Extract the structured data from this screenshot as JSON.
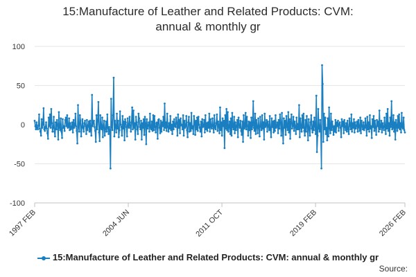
{
  "title_line1": "15:Manufacture of Leather and Related Products: CVM:",
  "title_line2": "annual & monthly gr",
  "legend_label": "15:Manufacture of Leather and Related Products: CVM: annual & monthly gr",
  "source_label": "Source:",
  "colors": {
    "series": "#1a7fc1",
    "grid": "#e6e6e6",
    "axis": "#c0c0c0"
  },
  "chart_data": {
    "type": "line",
    "title": "15:Manufacture of Leather and Related Products: CVM: annual & monthly gr",
    "xlabel": "",
    "ylabel": "",
    "ylim": [
      -100,
      100
    ],
    "yticks": [
      100,
      50,
      0,
      -50,
      -100
    ],
    "xlim": [
      "1997 FEB",
      "2026 FEB"
    ],
    "xticks": [
      "1997 FEB",
      "2004 JUN",
      "2011 OCT",
      "2019 FEB",
      "2026 FEB"
    ],
    "grid": true,
    "legend_position": "bottom",
    "series": [
      {
        "name": "15:Manufacture of Leather and Related Products: CVM: annual & monthly gr",
        "x_start": "1997 FEB",
        "frequency": "monthly",
        "key_points": [
          {
            "x": "1997 FEB",
            "y": 5
          },
          {
            "x": "2003 MAR",
            "y": 38
          },
          {
            "x": "2003 AUG",
            "y": 29
          },
          {
            "x": "2003 DEC",
            "y": -56
          },
          {
            "x": "2004 FEB",
            "y": 33
          },
          {
            "x": "2004 APR",
            "y": 60
          },
          {
            "x": "2011 DEC",
            "y": 22
          },
          {
            "x": "2012 JUL",
            "y": -30
          },
          {
            "x": "2016 MAR",
            "y": 30
          },
          {
            "x": "2019 NOV",
            "y": 37
          },
          {
            "x": "2020 APR",
            "y": -56
          },
          {
            "x": "2020 MAY",
            "y": 76
          },
          {
            "x": "2020 JUN",
            "y": 52
          },
          {
            "x": "2021 FEB",
            "y": 22
          },
          {
            "x": "2026 FEB",
            "y": -10
          }
        ],
        "values": [
          5,
          -2,
          -6,
          3,
          -4,
          -6,
          -1,
          13,
          -5,
          -9,
          -14,
          7,
          -4,
          0,
          21,
          -6,
          -8,
          -3,
          3,
          -5,
          -11,
          -18,
          9,
          -2,
          13,
          -4,
          20,
          2,
          -9,
          -4,
          10,
          -9,
          -15,
          3,
          -6,
          6,
          0,
          -19,
          16,
          -4,
          -7,
          8,
          -9,
          -17,
          7,
          -4,
          -2,
          -8,
          6,
          9,
          -2,
          12,
          -4,
          -3,
          8,
          -7,
          2,
          -6,
          -4,
          3,
          -10,
          6,
          -4,
          -1,
          14,
          -2,
          -8,
          -24,
          25,
          -3,
          -9,
          12,
          5,
          -15,
          -3,
          7,
          -4,
          -9,
          2,
          5,
          -2,
          -12,
          6,
          -7,
          -2,
          4,
          -9,
          5,
          -7,
          -14,
          38,
          -2,
          2,
          5,
          -3,
          -8,
          -22,
          12,
          -6,
          5,
          29,
          -10,
          -21,
          12,
          -4,
          -6,
          9,
          -16,
          -2,
          5,
          -14,
          -6,
          4,
          -9,
          13,
          -4,
          -12,
          -3,
          -7,
          -56,
          33,
          -3,
          -7,
          12,
          60,
          -15,
          5,
          -3,
          -10,
          14,
          -5,
          5,
          -16,
          -7,
          17,
          0,
          -3,
          -14,
          11,
          -5,
          4,
          -20,
          7,
          3,
          -3,
          -15,
          8,
          -2,
          -4,
          10,
          -1,
          -9,
          3,
          22,
          -6,
          18,
          -4,
          2,
          -19,
          10,
          3,
          -6,
          -12,
          14,
          8,
          -3,
          -6,
          5,
          -19,
          2,
          -4,
          7,
          -13,
          10,
          2,
          -25,
          7,
          -5,
          -1,
          3,
          -9,
          14,
          -4,
          -6,
          4,
          -8,
          12,
          -7,
          11,
          -3,
          -10,
          2,
          3,
          -18,
          6,
          7,
          -4,
          -11,
          5,
          -9,
          3,
          -2,
          10,
          -7,
          27,
          -4,
          3,
          -8,
          14,
          -3,
          -9,
          2,
          -5,
          11,
          -7,
          0,
          -12,
          4,
          -6,
          7,
          -2,
          -3,
          9,
          2,
          -14,
          13,
          -4,
          6,
          -11,
          8,
          -1,
          0,
          -6,
          12,
          -14,
          5,
          -4,
          -2,
          11,
          -7,
          -16,
          3,
          10,
          -9,
          2,
          -8,
          15,
          -5,
          -2,
          -12,
          11,
          3,
          -13,
          5,
          -6,
          9,
          -8,
          10,
          0,
          -4,
          -9,
          4,
          -15,
          7,
          -3,
          -2,
          6,
          -10,
          12,
          -6,
          2,
          -8,
          3,
          -4,
          14,
          -9,
          7,
          -3,
          -5,
          8,
          -2,
          -10,
          12,
          -4,
          -6,
          2,
          13,
          -8,
          4,
          -2,
          -11,
          22,
          -7,
          3,
          -14,
          8,
          -2,
          5,
          -30,
          12,
          -5,
          20,
          -7,
          16,
          -9,
          -3,
          4,
          -12,
          8,
          -14,
          15,
          -3,
          -6,
          10,
          -11,
          3,
          -7,
          -2,
          6,
          -16,
          9,
          -1,
          -4,
          5,
          -8,
          -13,
          4,
          -22,
          12,
          -5,
          -3,
          15,
          -6,
          10,
          -2,
          -14,
          4,
          -7,
          3,
          -17,
          9,
          -6,
          -1,
          30,
          -4,
          -8,
          14,
          -12,
          6,
          -3,
          -11,
          8,
          -4,
          -15,
          10,
          -2,
          -7,
          12,
          -5,
          3,
          -19,
          14,
          -3,
          -1,
          6,
          -9,
          4,
          -2,
          -7,
          11,
          -6,
          -16,
          8,
          -3,
          4,
          -10,
          5,
          -8,
          12,
          -4,
          -2,
          3,
          -11,
          6,
          -5,
          13,
          2,
          -14,
          15,
          -6,
          -24,
          8,
          -4,
          5,
          -13,
          11,
          -3,
          -7,
          16,
          -10,
          7,
          -18,
          4,
          13,
          -5,
          -2,
          10,
          -8,
          4,
          -3,
          -12,
          9,
          -6,
          1,
          -6,
          25,
          -16,
          8,
          -3,
          -9,
          12,
          -4,
          14,
          -8,
          -14,
          6,
          -9,
          11,
          -2,
          -20,
          7,
          -4,
          -14,
          3,
          12,
          -5,
          -10,
          4,
          -7,
          9,
          -2,
          -12,
          37,
          -35,
          -14,
          20,
          -5,
          -9,
          6,
          -7,
          -56,
          76,
          52,
          -22,
          14,
          -6,
          9,
          -12,
          -4,
          -20,
          8,
          -15,
          22,
          -5,
          -11,
          14,
          -7,
          4,
          -3,
          -13,
          -2,
          -9,
          6,
          -10,
          3,
          -2,
          5,
          -8,
          1,
          3,
          -4,
          -16,
          7,
          -2,
          4,
          -11,
          6,
          -3,
          -7,
          2,
          -9,
          5,
          -6,
          -12,
          8,
          -1,
          -6,
          13,
          -9,
          2,
          -4,
          7,
          -10,
          3,
          -5,
          -2,
          4,
          -9,
          6,
          -3,
          -8,
          9,
          -11,
          5,
          -2,
          -6,
          3,
          -7,
          -4,
          8,
          -2,
          -14,
          10,
          -6,
          3,
          -9,
          12,
          -5,
          -2,
          -17,
          7,
          -3,
          11,
          -8,
          5,
          -4,
          -13,
          6,
          -2,
          4,
          -9,
          18,
          -6,
          -3,
          5,
          -10,
          2,
          -4,
          -7,
          9,
          -3,
          -12,
          14,
          -5,
          20,
          -8,
          2,
          -14,
          9,
          -3,
          30,
          -6,
          -4,
          12,
          -9,
          3,
          -19,
          6,
          -2,
          -8,
          11,
          -4,
          13,
          -6,
          2,
          -10,
          15,
          -3,
          -5,
          9,
          -7,
          -10
        ]
      }
    ]
  }
}
